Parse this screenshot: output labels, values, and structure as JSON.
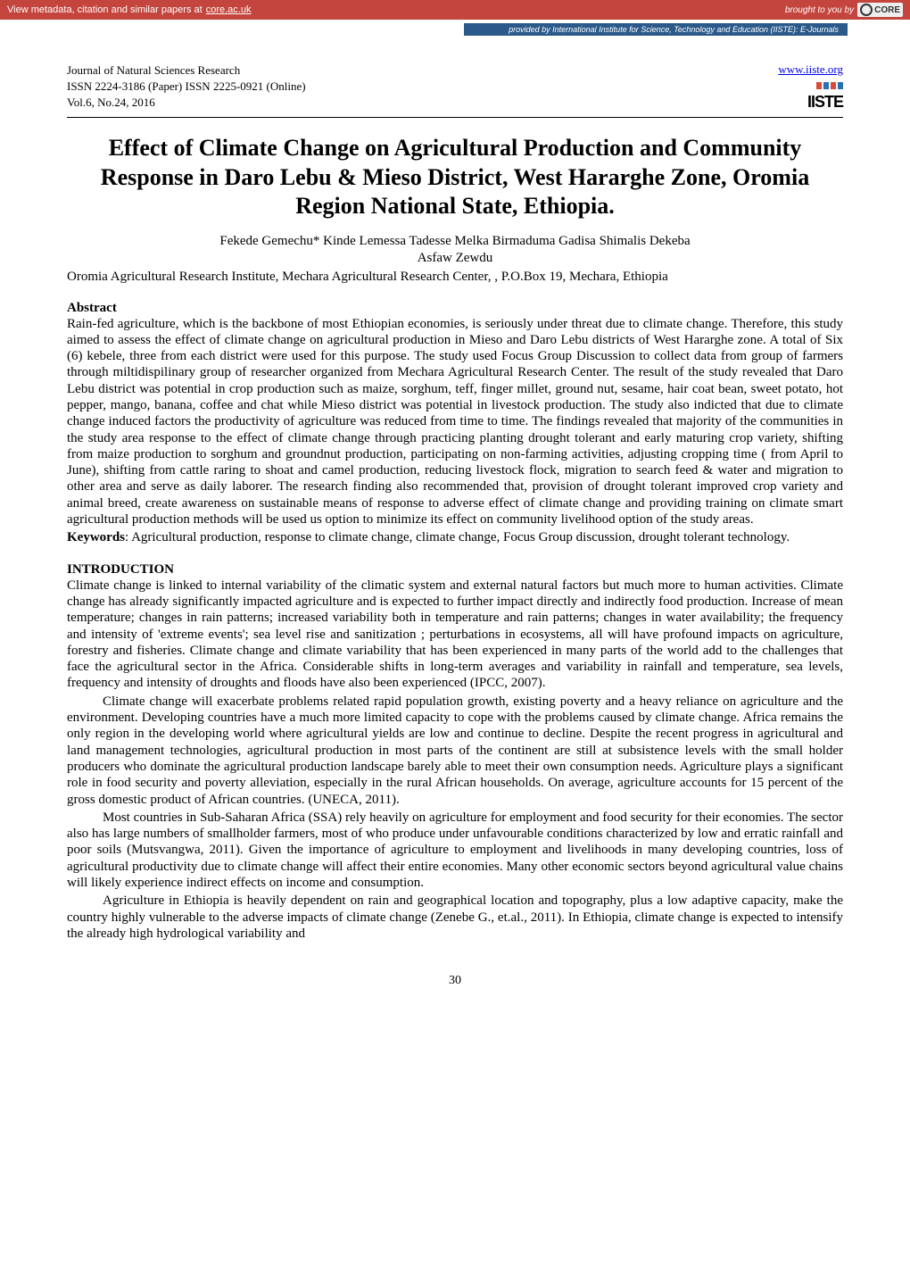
{
  "banner": {
    "left_prefix": "View metadata, citation and similar papers at ",
    "left_link_text": "core.ac.uk",
    "right_prefix": "brought to you by ",
    "logo_text": "CORE",
    "provided_by_prefix": "provided by ",
    "provided_by_text": "International Institute for Science, Technology and Education (IISTE): E-Journals",
    "colors": {
      "banner_bg": "#c4453d",
      "strip_bg": "#2b5a8a"
    }
  },
  "header": {
    "journal": "Journal of Natural Sciences Research",
    "issn": "ISSN 2224-3186 (Paper)  ISSN 2225-0921 (Online)",
    "vol": "Vol.6, No.24, 2016",
    "site_url": "www.iiste.org",
    "logo_text": "IISTE",
    "logo_bar_colors": [
      "#d94b3a",
      "#2b6fb3",
      "#d94b3a",
      "#2b6fb3"
    ]
  },
  "title": "Effect of Climate Change on Agricultural Production and Community Response in Daro Lebu & Mieso District, West Hararghe Zone, Oromia Region National State, Ethiopia.",
  "authors_line1": "Fekede Gemechu*      Kinde Lemessa      Tadesse Melka      Birmaduma Gadisa      Shimalis Dekeba",
  "authors_line2": "Asfaw Zewdu",
  "affiliation": "Oromia Agricultural Research Institute, Mechara Agricultural Research Center, , P.O.Box 19, Mechara, Ethiopia",
  "abstract": {
    "heading": "Abstract",
    "text": "Rain-fed agriculture, which is the backbone of most Ethiopian economies, is seriously under threat due to climate change. Therefore, this study aimed to assess the effect of climate change on agricultural production in Mieso and Daro Lebu districts of West Hararghe zone. A total of Six (6) kebele, three from each district were used for this purpose. The study used Focus Group Discussion to collect data from group of farmers through miltidispilinary group of researcher organized from Mechara Agricultural Research Center. The result of the study revealed that Daro Lebu district was potential in crop production such as maize, sorghum, teff, finger millet, ground nut, sesame, hair coat bean, sweet potato, hot pepper, mango, banana, coffee and chat while Mieso district was potential in livestock production. The study also indicted that due to climate change induced factors the productivity of agriculture was reduced from time to time. The findings revealed that majority of the communities in the study area response to the effect of climate change through practicing planting drought tolerant and early maturing crop variety, shifting from maize production to sorghum and groundnut production, participating on non-farming activities, adjusting  cropping time ( from April to June), shifting from cattle raring to shoat and camel production, reducing livestock flock, migration to search feed & water and migration to other area and serve as daily laborer. The research finding also recommended that, provision of drought tolerant improved crop variety and animal breed, create awareness on sustainable means of response to adverse effect of climate change and providing training on climate smart agricultural production methods will be used us option to minimize its effect on community livelihood option of the study areas.",
    "keywords_label": "Keywords",
    "keywords_text": ": Agricultural production, response to climate change, climate change, Focus Group discussion, drought tolerant technology."
  },
  "introduction": {
    "heading": "INTRODUCTION",
    "p1": "Climate change is linked to internal variability of the climatic system and external natural factors but much more to human activities.  Climate change has already significantly impacted agriculture and is expected to further impact directly and indirectly food production. Increase of mean temperature; changes in rain patterns; increased variability both in temperature and rain patterns; changes in water availability; the frequency and intensity of 'extreme events'; sea level rise and sanitization ; perturbations in ecosystems, all will have profound impacts on agriculture, forestry and fisheries. Climate change and climate variability that has been experienced in many parts of the world add to the challenges that face the agricultural sector in the Africa. Considerable shifts in long-term averages and variability in rainfall and temperature, sea levels, frequency and intensity of droughts and floods have also been experienced (IPCC, 2007).",
    "p2": "Climate change will exacerbate problems related rapid population growth, existing poverty and a heavy reliance on agriculture and the environment. Developing countries have a much more limited capacity to cope with the problems caused by climate change. Africa remains the only region in the developing world where agricultural yields are low and continue to decline. Despite the recent progress in agricultural and land management technologies, agricultural production in most parts of the continent are still at subsistence levels with the small holder producers who dominate the agricultural production landscape barely able to meet their own consumption needs. Agriculture plays a significant role in food security and poverty alleviation, especially in the rural African households. On average, agriculture accounts for 15 percent of the gross domestic product of African countries. (UNECA, 2011).",
    "p3": "Most countries in Sub-Saharan Africa (SSA) rely heavily on agriculture for employment and food security for their economies. The sector also has large numbers of smallholder farmers, most of who produce under unfavourable conditions characterized by low and erratic rainfall and poor soils (Mutsvangwa, 2011). Given the importance of agriculture to employment and livelihoods in many developing countries, loss of agricultural productivity due to climate change will affect their entire economies. Many other economic sectors beyond agricultural value chains will likely experience indirect effects on income and consumption.",
    "p4": "Agriculture in Ethiopia is heavily dependent on rain and geographical location and topography, plus a low adaptive capacity, make the country highly vulnerable to the adverse impacts of climate change (Zenebe G., et.al., 2011). In Ethiopia, climate change is expected to intensify the already high hydrological variability and"
  },
  "page_number": "30"
}
